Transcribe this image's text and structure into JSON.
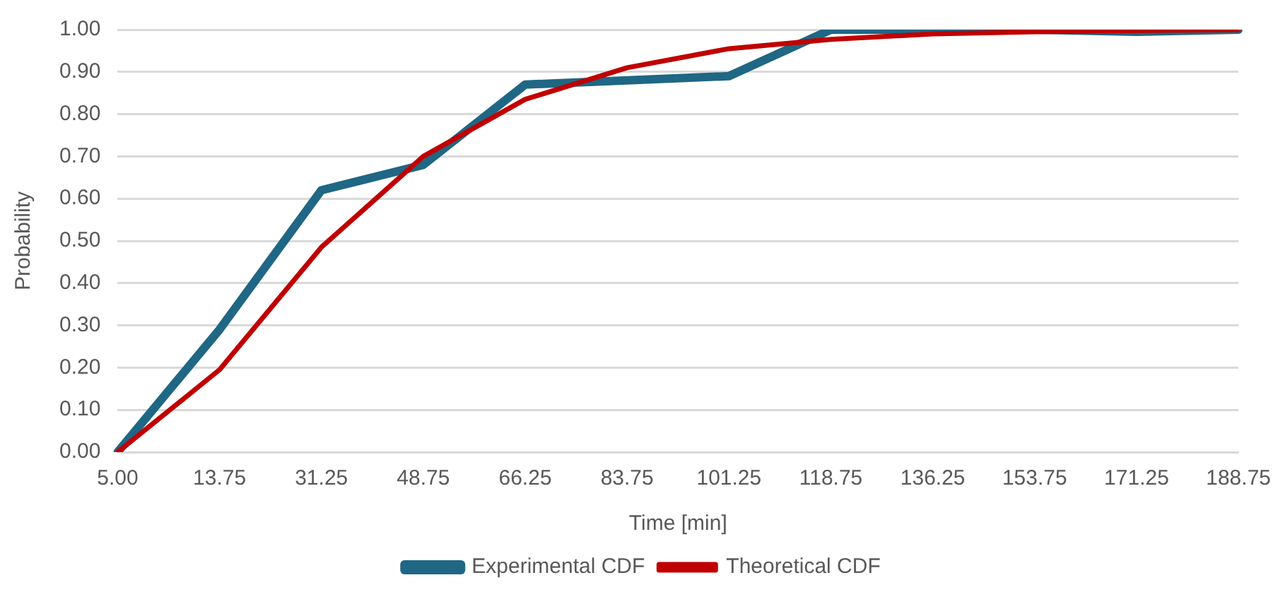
{
  "chart_data": {
    "type": "line",
    "xlabel": "Time [min]",
    "ylabel": "Probability",
    "categories": [
      "5.00",
      "13.75",
      "31.25",
      "48.75",
      "66.25",
      "83.75",
      "101.25",
      "118.75",
      "136.25",
      "153.75",
      "171.25",
      "188.75"
    ],
    "series": [
      {
        "name": "Experimental CDF",
        "color": "#1f6784",
        "values": [
          0,
          0.29,
          0.62,
          0.68,
          0.87,
          0.88,
          0.89,
          1.0,
          1.0,
          1.0,
          0.995,
          1.0
        ]
      },
      {
        "name": "Theoretical CDF",
        "color": "#c00000",
        "values": [
          0,
          0.195,
          0.485,
          0.7,
          0.835,
          0.91,
          0.955,
          0.977,
          0.99,
          0.995,
          0.998,
          1.0
        ]
      }
    ],
    "ylim": [
      0,
      1
    ],
    "yticks": [
      {
        "value": 0,
        "label": "0.00"
      },
      {
        "value": 0.1,
        "label": "0.10"
      },
      {
        "value": 0.2,
        "label": "0.20"
      },
      {
        "value": 0.3,
        "label": "0.30"
      },
      {
        "value": 0.4,
        "label": "0.40"
      },
      {
        "value": 0.5,
        "label": "0.50"
      },
      {
        "value": 0.6,
        "label": "0.60"
      },
      {
        "value": 0.7,
        "label": "0.70"
      },
      {
        "value": 0.8,
        "label": "0.80"
      },
      {
        "value": 0.9,
        "label": "0.90"
      },
      {
        "value": 1,
        "label": "1.00"
      }
    ],
    "grid": "y",
    "legend": "bottom",
    "marker": "none",
    "line_style": "solid"
  }
}
